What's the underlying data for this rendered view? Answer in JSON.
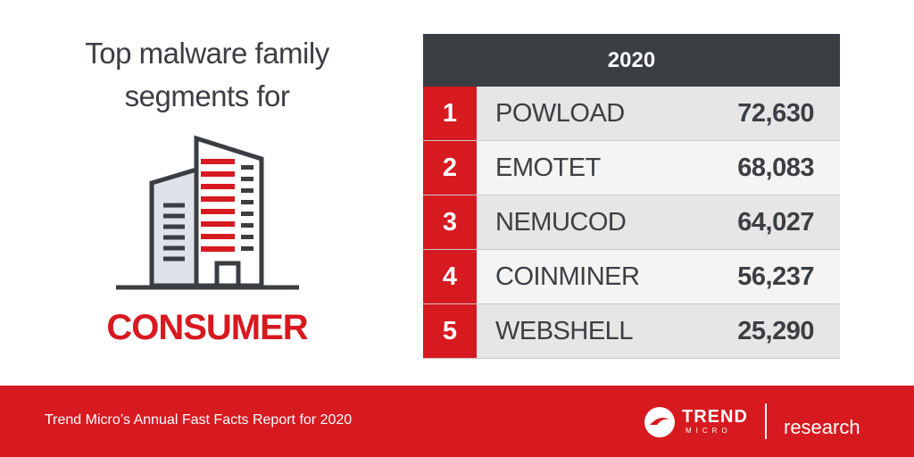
{
  "header": {
    "title": "Top malware family segments for"
  },
  "segment": "CONSUMER",
  "table": {
    "year": "2020",
    "rows": [
      [
        "1",
        "POWLOAD",
        "72,630"
      ],
      [
        "2",
        "EMOTET",
        "68,083"
      ],
      [
        "3",
        "NEMUCOD",
        "64,027"
      ],
      [
        "4",
        "COINMINER",
        "56,237"
      ],
      [
        "5",
        "WEBSHELL",
        "25,290"
      ]
    ]
  },
  "footer": {
    "text": "Trend Micro’s Annual Fast Facts Report for 2020",
    "brand": "TREND",
    "brand_sub": "MICRO",
    "research": "research"
  }
}
